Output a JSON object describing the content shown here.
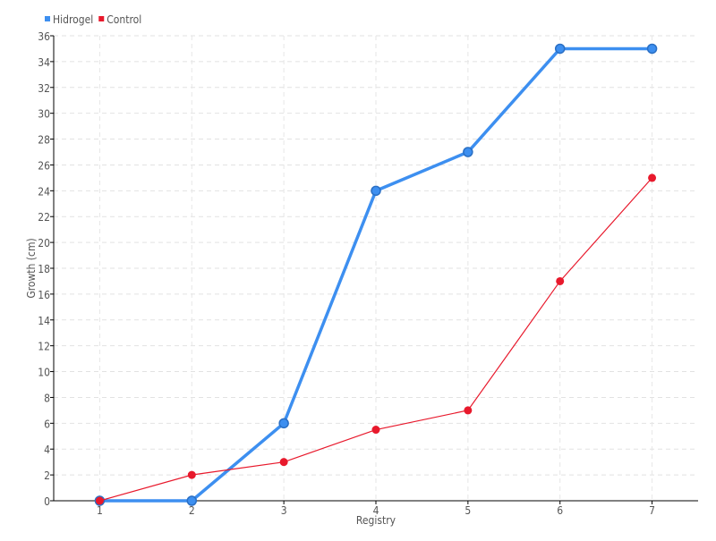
{
  "chart_data": {
    "type": "line",
    "title": "",
    "xlabel": "Registry",
    "ylabel": "Growth (cm)",
    "categories": [
      "1",
      "2",
      "3",
      "4",
      "5",
      "6",
      "7"
    ],
    "ylim": [
      0,
      36
    ],
    "yticks": [
      "0",
      "2",
      "4",
      "6",
      "8",
      "10",
      "12",
      "14",
      "16",
      "18",
      "20",
      "22",
      "24",
      "26",
      "28",
      "30",
      "32",
      "34",
      "36"
    ],
    "grid": true,
    "legend_position": "top-left",
    "series": [
      {
        "name": "Hidrogel",
        "color": "#3d8ff0",
        "values": [
          0,
          0,
          6,
          24,
          27,
          35,
          35
        ]
      },
      {
        "name": "Control",
        "color": "#e8192c",
        "values": [
          0,
          2,
          3,
          5.5,
          7,
          17,
          25
        ]
      }
    ]
  }
}
